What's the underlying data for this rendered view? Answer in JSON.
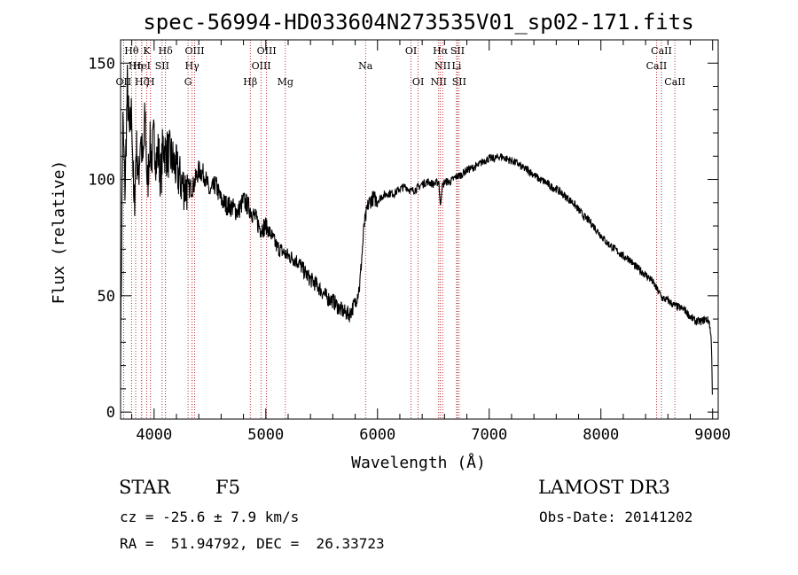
{
  "chart_data": {
    "type": "line",
    "title": "spec-56994-HD033604N273535V01_sp02-171.fits",
    "xlabel": "Wavelength (Å)",
    "ylabel": "Flux (relative)",
    "xlim": [
      3700,
      9050
    ],
    "ylim": [
      -3,
      160
    ],
    "x_ticks": [
      4000,
      5000,
      6000,
      7000,
      8000,
      9000
    ],
    "y_ticks": [
      0,
      50,
      100,
      150
    ],
    "grid": false,
    "legend": "none",
    "line_color": "#000000",
    "marker_color": "#aa0000",
    "series": [
      {
        "x": [
          3700,
          3720,
          3740,
          3760,
          3780,
          3800,
          3820,
          3840,
          3860,
          3880,
          3900,
          3920,
          3940,
          3960,
          3980,
          4000,
          4020,
          4040,
          4060,
          4080,
          4100,
          4150,
          4200,
          4250,
          4300,
          4350,
          4400,
          4450,
          4500,
          4550,
          4600,
          4650,
          4700,
          4750,
          4800,
          4850,
          4900,
          4950,
          5000,
          5050,
          5100,
          5150,
          5200,
          5250,
          5300,
          5350,
          5400,
          5450,
          5500,
          5550,
          5600,
          5650,
          5700,
          5750,
          5800,
          5840,
          5880,
          5920,
          5960,
          6000,
          6050,
          6100,
          6150,
          6200,
          6250,
          6300,
          6350,
          6400,
          6450,
          6500,
          6550,
          6562,
          6575,
          6600,
          6650,
          6700,
          6750,
          6800,
          6850,
          6900,
          6950,
          7000,
          7050,
          7100,
          7150,
          7200,
          7250,
          7300,
          7350,
          7400,
          7450,
          7500,
          7550,
          7600,
          7650,
          7700,
          7750,
          7800,
          7850,
          7900,
          7950,
          8000,
          8050,
          8100,
          8150,
          8200,
          8250,
          8300,
          8350,
          8400,
          8450,
          8500,
          8550,
          8600,
          8650,
          8700,
          8750,
          8800,
          8850,
          8900,
          8940,
          8970,
          8990,
          9000
        ],
        "y": [
          25,
          125,
          95,
          140,
          118,
          130,
          85,
          115,
          100,
          120,
          105,
          128,
          95,
          115,
          110,
          118,
          108,
          112,
          100,
          115,
          112,
          110,
          104,
          98,
          96,
          97,
          104,
          102,
          94,
          98,
          91,
          89,
          88,
          86,
          91,
          88,
          84,
          79,
          80,
          76,
          71,
          69,
          67,
          66,
          64,
          60,
          57,
          55,
          52,
          49,
          48,
          45,
          43,
          42,
          47,
          54,
          80,
          90,
          92,
          91,
          93,
          94,
          94,
          96,
          97,
          95,
          96,
          98,
          99,
          98,
          99,
          88,
          96,
          99,
          99,
          101,
          102,
          104,
          105,
          106,
          108,
          109,
          109,
          110,
          109,
          108,
          107,
          105,
          104,
          102,
          100,
          99,
          97,
          96,
          94,
          92,
          90,
          87,
          84,
          82,
          79,
          76,
          73,
          71,
          69,
          67,
          66,
          63,
          61,
          59,
          57,
          53,
          49,
          48,
          46,
          45,
          44,
          41,
          39,
          39,
          40,
          39,
          30,
          2
        ]
      }
    ],
    "spectral_lines": [
      {
        "label": "Hθ",
        "wave": 3798,
        "row": 1
      },
      {
        "label": "OII",
        "wave": 3727,
        "row": 3
      },
      {
        "label": "Hη",
        "wave": 3835,
        "row": 2
      },
      {
        "label": "Hζ",
        "wave": 3889,
        "row": 3
      },
      {
        "label": "HeI",
        "wave": 3889,
        "row": 2
      },
      {
        "label": "K",
        "wave": 3934,
        "row": 1
      },
      {
        "label": "H",
        "wave": 3968,
        "row": 3
      },
      {
        "label": "SII",
        "wave": 4072,
        "row": 2
      },
      {
        "label": "Hδ",
        "wave": 4102,
        "row": 1
      },
      {
        "label": "OIII",
        "wave": 4363,
        "row": 1
      },
      {
        "label": "Hγ",
        "wave": 4340,
        "row": 2
      },
      {
        "label": "G",
        "wave": 4304,
        "row": 3
      },
      {
        "label": "Hβ",
        "wave": 4861,
        "row": 3
      },
      {
        "label": "OIII",
        "wave": 4959,
        "row": 2
      },
      {
        "label": "OIII",
        "wave": 5007,
        "row": 1
      },
      {
        "label": "Mg",
        "wave": 5175,
        "row": 3
      },
      {
        "label": "Na",
        "wave": 5893,
        "row": 2
      },
      {
        "label": "OI",
        "wave": 6300,
        "row": 1
      },
      {
        "label": "OI",
        "wave": 6364,
        "row": 3
      },
      {
        "label": "NII",
        "wave": 6548,
        "row": 3
      },
      {
        "label": "NII",
        "wave": 6583,
        "row": 2
      },
      {
        "label": "Hα",
        "wave": 6563,
        "row": 1
      },
      {
        "label": "SII",
        "wave": 6716,
        "row": 1
      },
      {
        "label": "SII",
        "wave": 6731,
        "row": 3
      },
      {
        "label": "Li",
        "wave": 6708,
        "row": 2
      },
      {
        "label": "CaII",
        "wave": 8498,
        "row": 2
      },
      {
        "label": "CaII",
        "wave": 8542,
        "row": 1
      },
      {
        "label": "CaII",
        "wave": 8662,
        "row": 3
      }
    ]
  },
  "info": {
    "object_class": "STAR",
    "subclass": "F5",
    "survey": "LAMOST DR3",
    "cz": "cz = -25.6 ± 7.9 km/s",
    "obs_date": "Obs-Date: 20141202",
    "coords": "RA =  51.94792, DEC =  26.33723"
  }
}
